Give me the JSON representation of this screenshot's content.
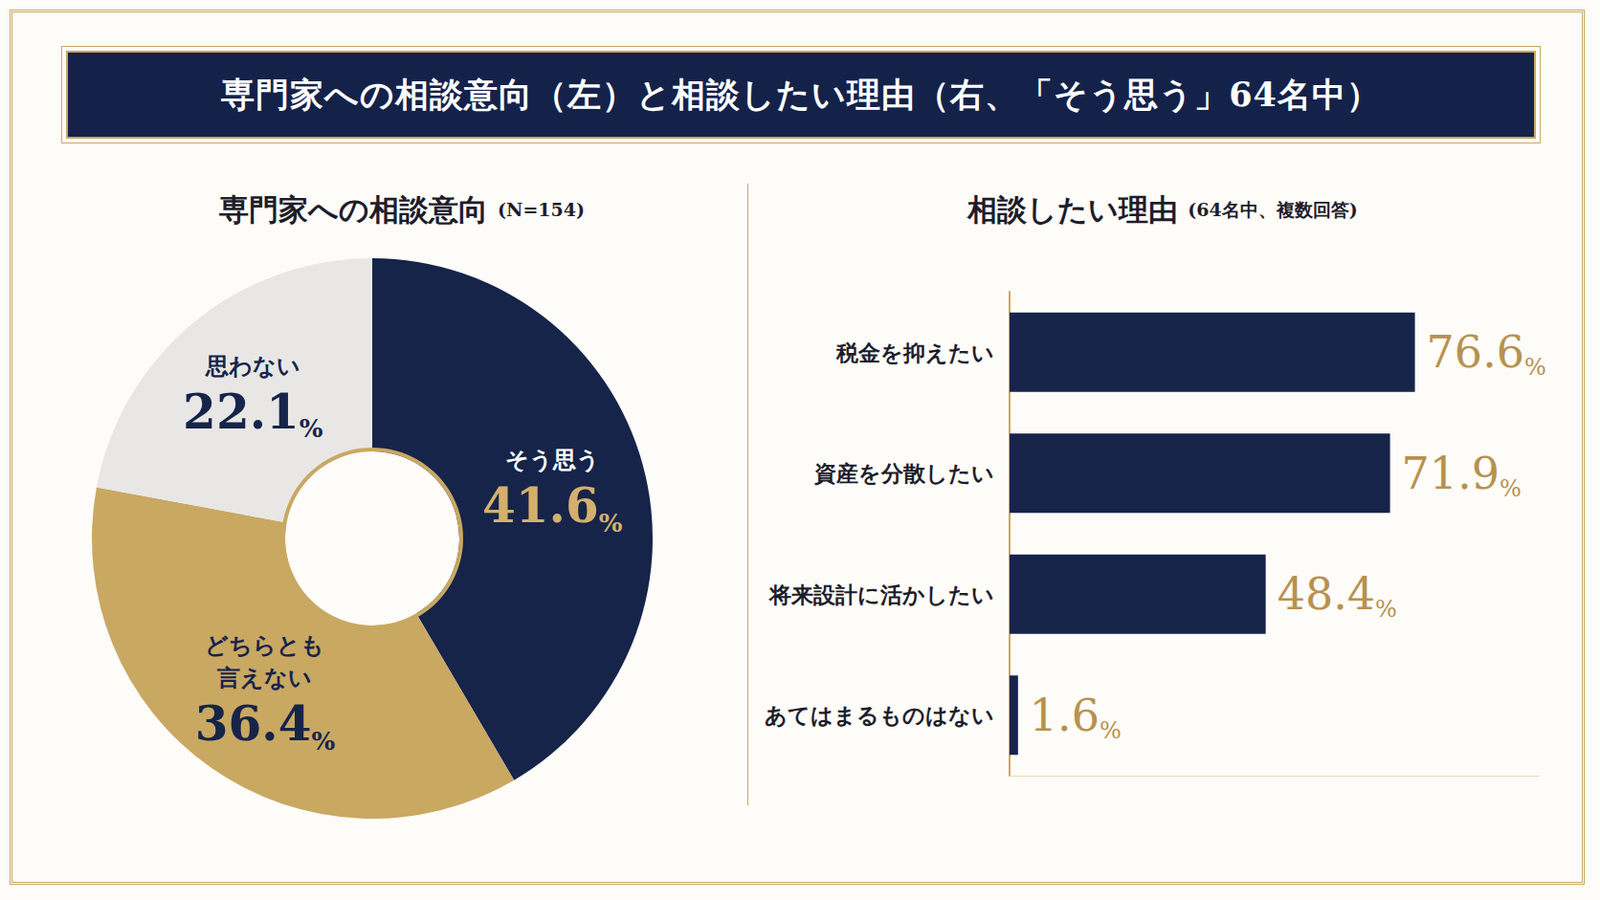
{
  "title": "専門家への相談意向（左）と相談したい理由（右、「そう思う」64名中）",
  "chart_data": [
    {
      "type": "pie",
      "title": "専門家への相談意向",
      "subtitle": "(N=154)",
      "categories": [
        "そう思う",
        "どちらとも言えない",
        "思わない"
      ],
      "values": [
        41.6,
        36.4,
        22.1
      ],
      "value_labels": [
        "41.6%",
        "36.4%",
        "22.1%"
      ],
      "colors": [
        "#16244a",
        "#c9a862",
        "#e8e7e5"
      ],
      "data_labels": true
    },
    {
      "type": "bar",
      "title": "相談したい理由",
      "subtitle": "(64名中、複数回答)",
      "orientation": "horizontal",
      "categories": [
        "税金を抑えたい",
        "資産を分散したい",
        "将来設計に活かしたい",
        "あてはまるものはない"
      ],
      "values": [
        76.6,
        71.9,
        48.4,
        1.6
      ],
      "value_labels": [
        "76.6%",
        "71.9%",
        "48.4%",
        "1.6%"
      ],
      "color": "#16244a",
      "xlim": [
        0,
        100
      ],
      "data_labels": true,
      "tick_labels": "y",
      "grid": false
    }
  ]
}
